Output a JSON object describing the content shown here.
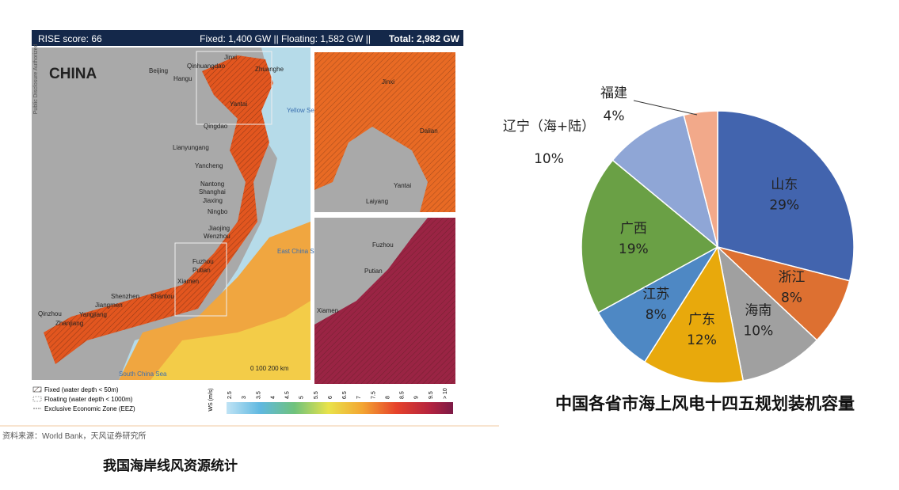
{
  "map": {
    "header": {
      "score": "RISE score: 66",
      "capacity": "Fixed: 1,400 GW  || Floating: 1,582 GW  ||",
      "total": "Total: 2,982 GW"
    },
    "side_note": "Public Disclosure Authorized",
    "country": "CHINA",
    "cities": [
      "Beijing",
      "Qinhuangdao",
      "Jinxi",
      "Hangu",
      "Zhuanghe",
      "Yantai",
      "Qingdao",
      "Lianyungang",
      "Yancheng",
      "Nantong",
      "Shanghai",
      "Jiaxing",
      "Ningbo",
      "Jiaojing",
      "Wenzhou",
      "Fuzhou",
      "Putian",
      "Xiamen",
      "Shenzhen",
      "Shantou",
      "Jiangmen",
      "Yangjiang",
      "Qinzhou",
      "Zhanjiang"
    ],
    "seas": [
      "Yellow Sea",
      "East China Sea",
      "South China Sea"
    ],
    "inset_north": [
      "Jinxi",
      "Dalian",
      "Yantai",
      "Laiyang"
    ],
    "inset_south": [
      "Fuzhou",
      "Putian",
      "Xiamen"
    ],
    "scale": "0   100   200 km",
    "legend": [
      "Fixed (water depth < 50m)",
      "Floating (water depth < 1000m)",
      "Exclusive Economic Zone (EEZ)"
    ],
    "colorbar": {
      "label": "WS (m/s)",
      "ticks": [
        "2.5",
        "3",
        "3.5",
        "4",
        "4.5",
        "5",
        "5.5",
        "6",
        "6.5",
        "7",
        "7.5",
        "8",
        "8.5",
        "9",
        "9.5",
        "> 10"
      ]
    }
  },
  "source": "资料来源：World Bank，天风证券研究所",
  "map_caption": "我国海岸线风资源统计",
  "chart_data": {
    "type": "pie",
    "title": "中国各省市海上风电十四五规划装机容量",
    "categories": [
      "山东",
      "浙江",
      "海南",
      "广东",
      "江苏",
      "广西",
      "辽宁（海+陆）",
      "福建"
    ],
    "values": [
      29,
      8,
      10,
      12,
      8,
      19,
      10,
      4
    ],
    "value_labels": [
      "29%",
      "8%",
      "10%",
      "12%",
      "8%",
      "19%",
      "10%",
      "4%"
    ],
    "colors": [
      "#4264ae",
      "#dd7031",
      "#a0a0a0",
      "#e8a90c",
      "#4e88c4",
      "#6aa045",
      "#8fa6d6",
      "#f2a98a"
    ]
  }
}
